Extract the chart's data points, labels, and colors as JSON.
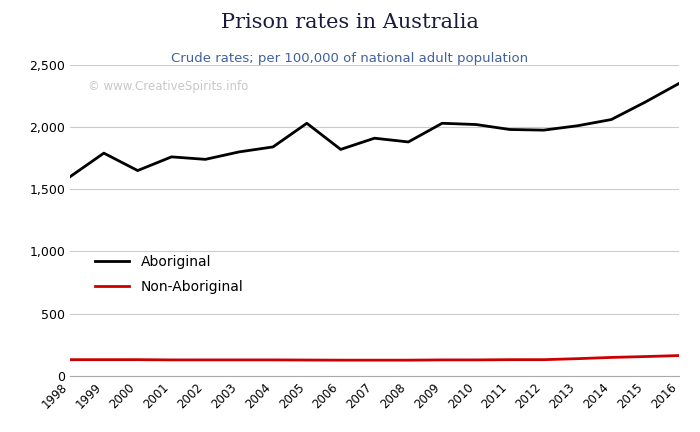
{
  "title": "Prison rates in Australia",
  "subtitle": "Crude rates; per 100,000 of national adult population",
  "watermark": "© www.CreativeSpirits.info",
  "years": [
    1998,
    1999,
    2000,
    2001,
    2002,
    2003,
    2004,
    2005,
    2006,
    2007,
    2008,
    2009,
    2010,
    2011,
    2012,
    2013,
    2014,
    2015,
    2016
  ],
  "aboriginal": [
    1600,
    1790,
    1650,
    1760,
    1740,
    1800,
    1840,
    2030,
    1820,
    1910,
    1880,
    2030,
    2020,
    1980,
    1975,
    2010,
    2060,
    2200,
    2350
  ],
  "non_aboriginal": [
    130,
    130,
    130,
    128,
    128,
    128,
    128,
    127,
    126,
    126,
    126,
    128,
    128,
    130,
    130,
    138,
    148,
    155,
    163
  ],
  "aboriginal_color": "#000000",
  "non_aboriginal_color": "#cc0000",
  "title_color": "#1a1a3e",
  "subtitle_color": "#4060a0",
  "watermark_color": "#c8c8c8",
  "background_color": "#ffffff",
  "plot_background_color": "#ffffff",
  "grid_color": "#cccccc",
  "ylim": [
    0,
    2500
  ],
  "yticks": [
    0,
    500,
    1000,
    1500,
    2000,
    2500
  ],
  "line_width": 2.0,
  "legend_aboriginal": "Aboriginal",
  "legend_non_aboriginal": "Non-Aboriginal"
}
